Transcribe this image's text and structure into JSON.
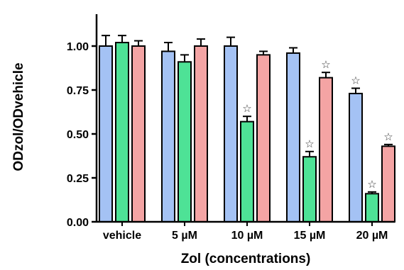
{
  "chart_data": {
    "type": "bar",
    "title": "",
    "xlabel": "Zol (concentrations)",
    "ylabel": "ODzol/ODvehicle",
    "ylim": [
      0,
      1.25
    ],
    "yticks": [
      "0.00",
      "0.25",
      "0.50",
      "0.75",
      "1.00"
    ],
    "ytick_values": [
      0,
      0.25,
      0.5,
      0.75,
      1.0
    ],
    "categories": [
      "vehicle",
      "5 µM",
      "10 µM",
      "15 µM",
      "20 µM"
    ],
    "legend": "none",
    "grid": false,
    "series": [
      {
        "color": "#a4c2f4",
        "values": [
          1.0,
          0.97,
          1.0,
          0.96,
          0.73
        ],
        "errors": [
          0.06,
          0.05,
          0.05,
          0.03,
          0.03
        ],
        "significant": [
          false,
          false,
          false,
          false,
          true
        ]
      },
      {
        "color": "#4ee296",
        "values": [
          1.02,
          0.91,
          0.57,
          0.37,
          0.16
        ],
        "errors": [
          0.04,
          0.04,
          0.03,
          0.03,
          0.01
        ],
        "significant": [
          false,
          false,
          true,
          true,
          true
        ]
      },
      {
        "color": "#f4a4a4",
        "values": [
          1.0,
          1.0,
          0.95,
          0.82,
          0.43
        ],
        "errors": [
          0.03,
          0.04,
          0.02,
          0.03,
          0.01
        ],
        "significant": [
          false,
          false,
          false,
          true,
          true
        ]
      }
    ],
    "significance_marker": "☆"
  }
}
